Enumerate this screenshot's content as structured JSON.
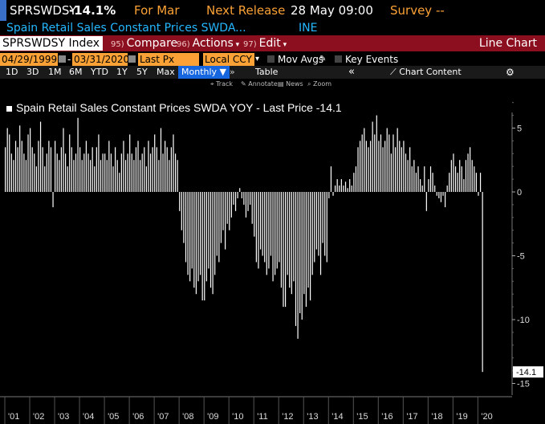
{
  "header": {
    "ticker": "SPRSWDSY",
    "last_value": "-14.1%",
    "for_label": "For Mar",
    "next_release_label": "Next Release",
    "next_release_date": "28 May 09:00",
    "survey_label": "Survey --",
    "security_name": "Spain Retail Sales Constant Prices SWDA...",
    "source": "INE"
  },
  "toolbar": {
    "index_label": "SPRSWDSY Index",
    "compare_num": "95)",
    "compare_label": "Compare",
    "actions_num": "96)",
    "actions_label": "Actions",
    "edit_num": "97)",
    "edit_label": "Edit",
    "chart_type": "Line Chart"
  },
  "settings": {
    "start_date": "04/29/1999",
    "end_date": "03/31/2020",
    "field": "Last Px",
    "currency": "Local CCY",
    "mov_avgs": "Mov Avgs",
    "key_events": "Key Events"
  },
  "periods": [
    "1D",
    "3D",
    "1M",
    "6M",
    "YTD",
    "1Y",
    "5Y",
    "Max"
  ],
  "frequency": "Monthly",
  "table_label": "Table",
  "chart_content_label": "Chart Content",
  "tools": {
    "track": "Track",
    "annotate": "Annotate",
    "news": "News",
    "zoom": "Zoom"
  },
  "colors": {
    "accent": "#fba135",
    "toolbar_red": "#8b0f1e",
    "link_blue": "#25b7ff",
    "active_blue": "#1666e0",
    "bars": "#ffffff"
  },
  "chart_data": {
    "type": "bar",
    "title": "Spain Retail Sales Constant Prices SWDA YOY - Last Price -14.1",
    "last_price_label": "-14.1",
    "ylim": [
      -15,
      7
    ],
    "y_ticks": [
      5,
      0,
      -5,
      -10,
      -15
    ],
    "x_tick_labels": [
      "'01",
      "'02",
      "'03",
      "'04",
      "'05",
      "'06",
      "'07",
      "'08",
      "'09",
      "'10",
      "'11",
      "'12",
      "'13",
      "'14",
      "'15",
      "'16",
      "'17",
      "'18",
      "'19",
      "'20"
    ],
    "start": "2001-01",
    "values": [
      3.5,
      5.0,
      4.5,
      3.0,
      2.5,
      4.0,
      3.5,
      5.2,
      4.0,
      3.0,
      2.5,
      4.5,
      5.0,
      3.5,
      3.0,
      2.0,
      4.0,
      5.5,
      3.5,
      2.0,
      3.0,
      4.0,
      3.5,
      -1.2,
      4.0,
      3.0,
      2.5,
      3.5,
      5.0,
      3.0,
      2.0,
      4.5,
      3.5,
      2.5,
      3.0,
      5.8,
      3.5,
      2.5,
      3.0,
      4.0,
      3.0,
      2.5,
      3.5,
      2.0,
      3.5,
      4.5,
      2.5,
      3.0,
      3.0,
      2.5,
      4.0,
      3.0,
      2.0,
      3.5,
      2.5,
      1.5,
      3.0,
      4.0,
      2.5,
      3.0,
      4.5,
      3.0,
      2.5,
      3.5,
      4.0,
      2.5,
      3.0,
      3.5,
      2.0,
      4.0,
      3.0,
      3.5,
      4.5,
      3.5,
      2.5,
      5.0,
      3.0,
      4.0,
      3.5,
      2.5,
      3.5,
      4.5,
      3.0,
      2.5,
      -1.5,
      -3.0,
      -4.0,
      -5.5,
      -6.5,
      -7.0,
      -6.0,
      -7.5,
      -8.0,
      -7.0,
      -6.5,
      -8.5,
      -8.5,
      -7.0,
      -6.0,
      -7.5,
      -8.0,
      -6.5,
      -5.0,
      -5.5,
      -4.0,
      -3.0,
      -4.5,
      -2.5,
      -3.0,
      -2.0,
      -1.0,
      -1.5,
      -0.5,
      0.3,
      -0.5,
      -1.0,
      -2.0,
      -1.5,
      -1.0,
      -2.5,
      -3.5,
      -5.5,
      -6.0,
      -4.5,
      -5.0,
      -5.5,
      -6.5,
      -6.0,
      -5.0,
      -7.0,
      -6.5,
      -6.0,
      -5.5,
      -7.5,
      -9.0,
      -9.0,
      -6.5,
      -7.5,
      -8.0,
      -7.0,
      -10.5,
      -11.5,
      -9.5,
      -10.0,
      -8.0,
      -9.0,
      -7.5,
      -8.5,
      -6.5,
      -5.5,
      -4.5,
      -5.0,
      -6.5,
      -4.0,
      -5.0,
      -5.5,
      -0.5,
      2.0,
      -0.3,
      0.5,
      1.0,
      0.5,
      1.0,
      0.5,
      0.8,
      0.3,
      1.0,
      0.5,
      1.5,
      2.0,
      3.5,
      4.0,
      4.5,
      5.0,
      4.0,
      3.5,
      4.0,
      5.5,
      4.5,
      6.0,
      4.0,
      4.5,
      3.5,
      4.0,
      5.0,
      4.5,
      3.0,
      4.5,
      3.5,
      5.0,
      4.0,
      3.5,
      4.0,
      3.0,
      2.5,
      3.5,
      2.0,
      2.5,
      1.5,
      2.0,
      1.0,
      0.5,
      2.0,
      -1.5,
      1.0,
      2.0,
      1.5,
      0.5,
      -0.3,
      -0.5,
      -0.8,
      -0.3,
      -1.2,
      0.5,
      1.5,
      2.5,
      3.0,
      2.0,
      1.5,
      2.5,
      2.0,
      1.0,
      2.5,
      3.0,
      3.5,
      2.5,
      2.0,
      1.5,
      -0.3,
      1.5,
      -14.1
    ]
  }
}
